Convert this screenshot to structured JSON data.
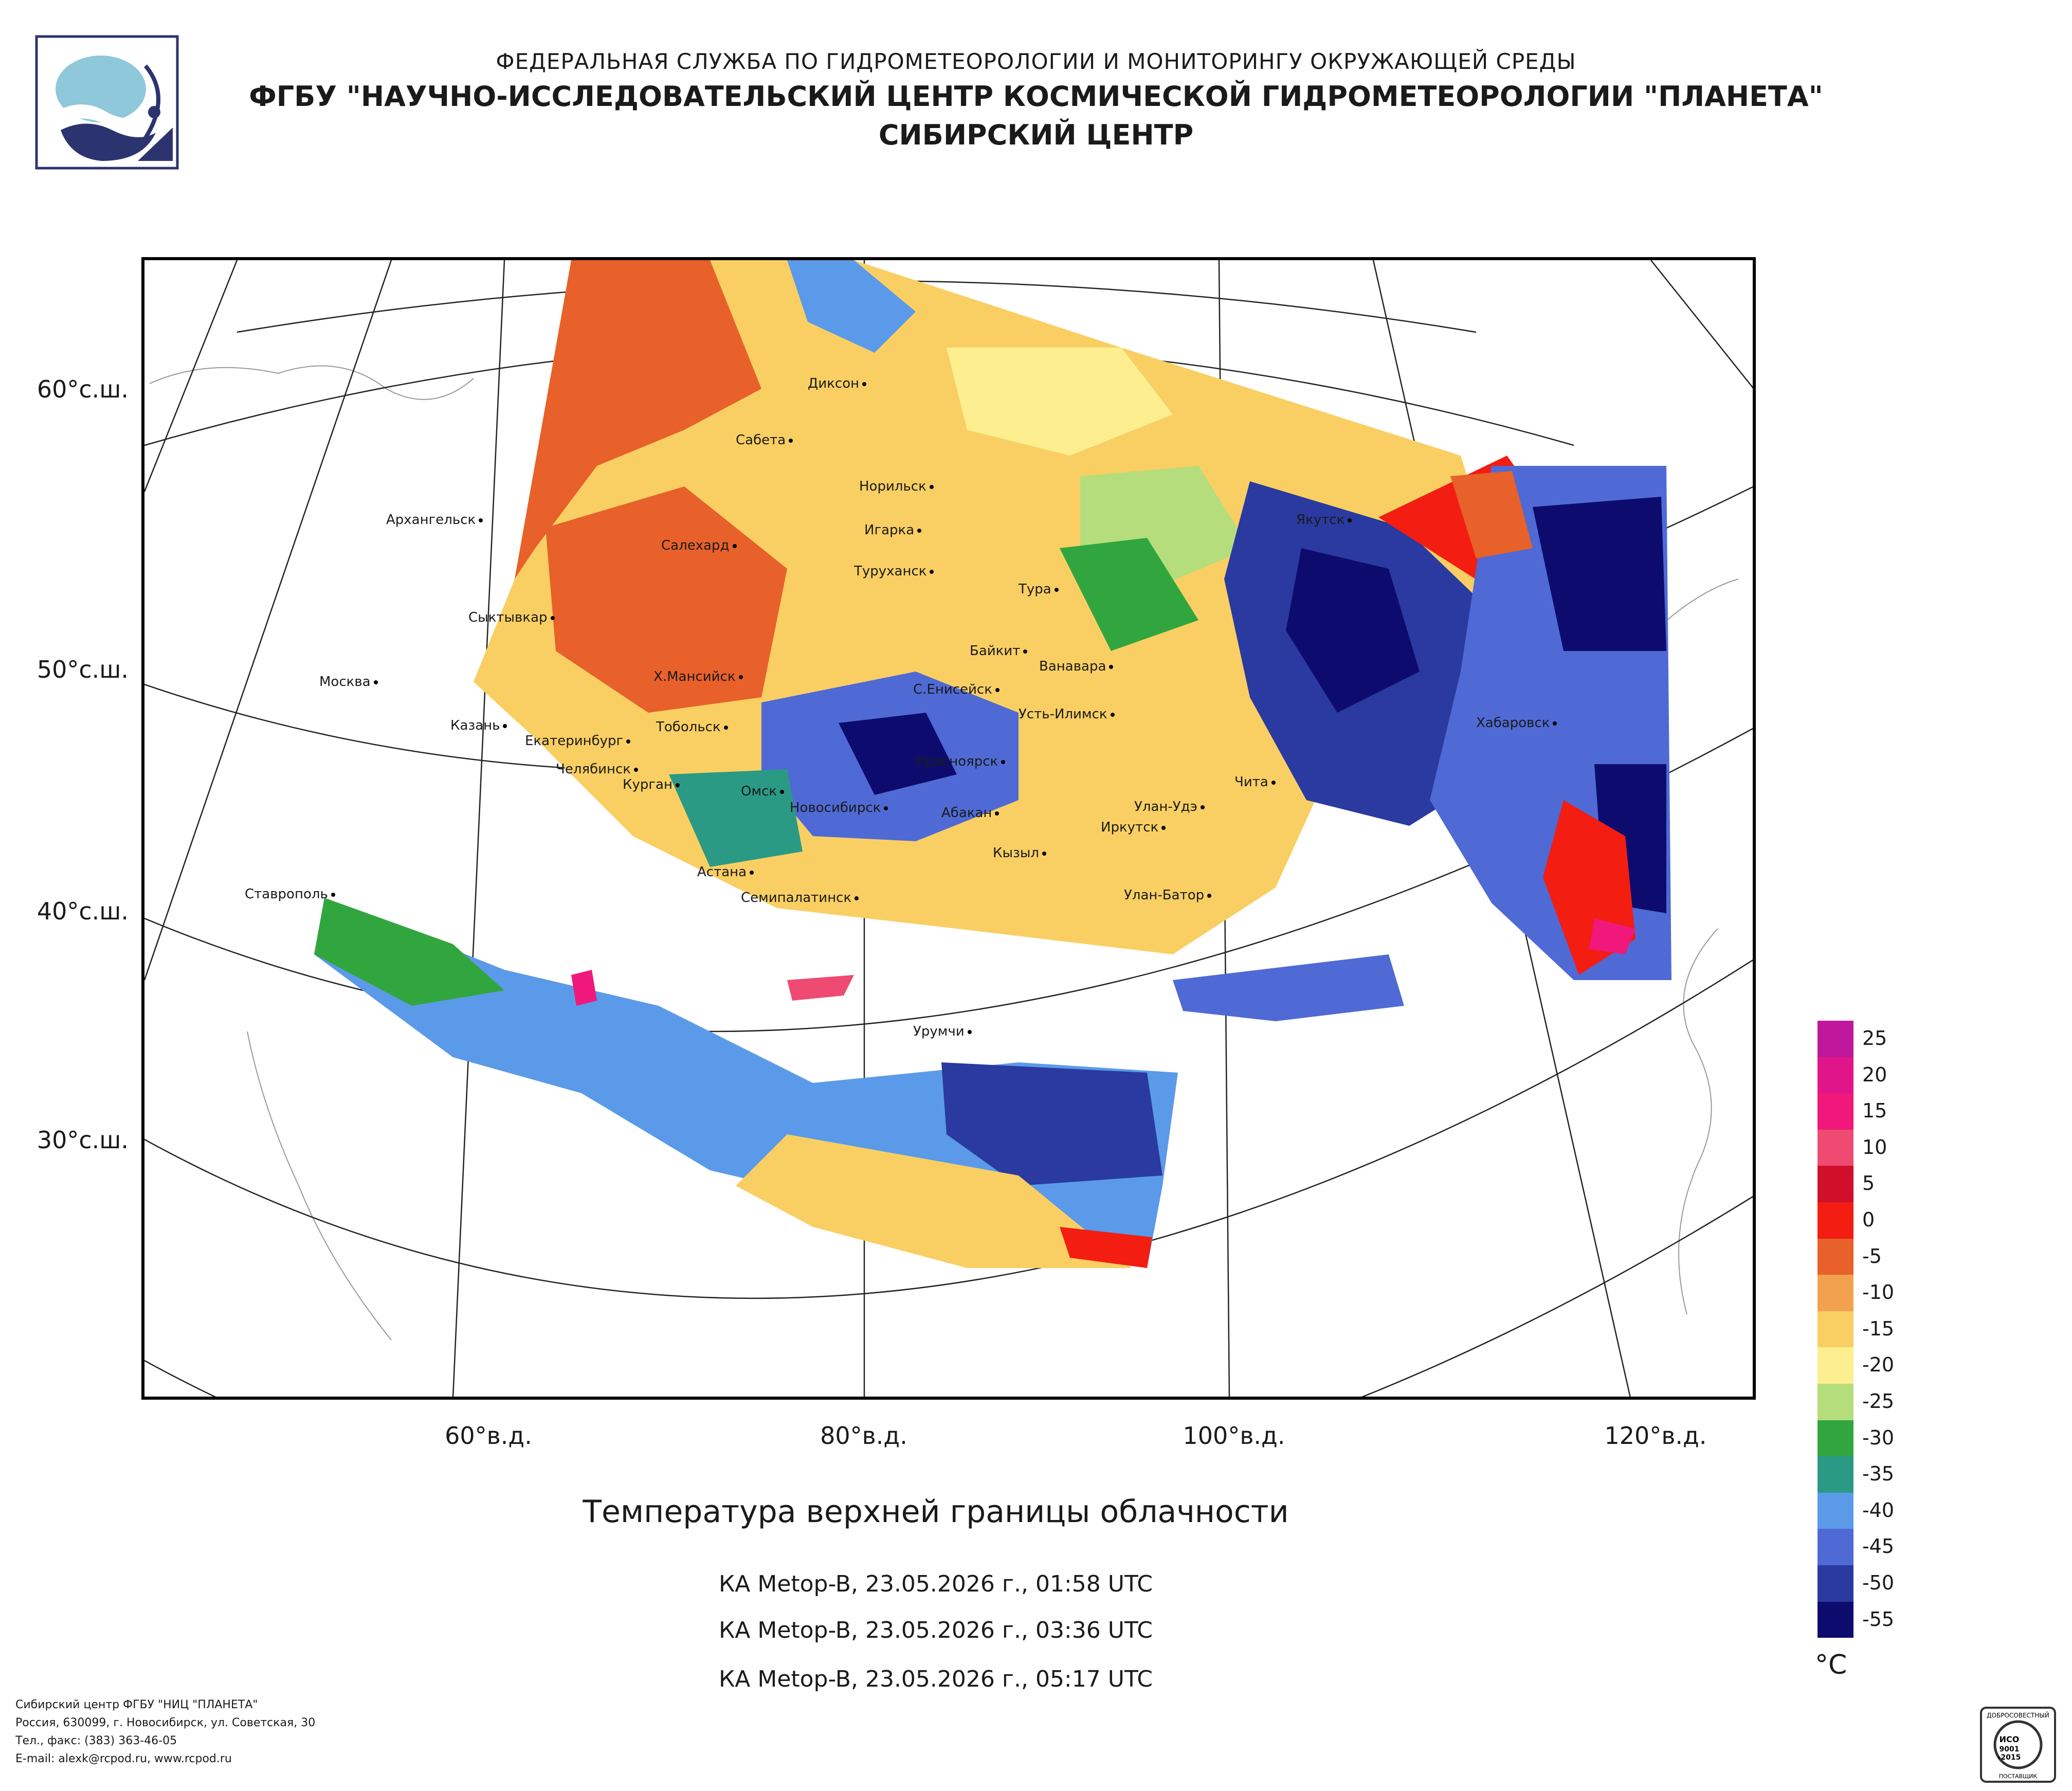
{
  "header": {
    "line1": "ФЕДЕРАЛЬНАЯ СЛУЖБА ПО ГИДРОМЕТЕОРОЛОГИИ И МОНИТОРИНГУ ОКРУЖАЮЩЕЙ СРЕДЫ",
    "line2": "ФГБУ \"НАУЧНО-ИССЛЕДОВАТЕЛЬСКИЙ ЦЕНТР КОСМИЧЕСКОЙ ГИДРОМЕТЕОРОЛОГИИ \"ПЛАНЕТА\"",
    "line3": "СИБИРСКИЙ ЦЕНТР"
  },
  "map": {
    "latitude_labels": [
      "60°с.ш.",
      "50°с.ш.",
      "40°с.ш.",
      "30°с.ш."
    ],
    "longitude_labels": [
      "60°в.д.",
      "80°в.д.",
      "100°в.д.",
      "120°в.д."
    ],
    "cities": [
      "Диксон",
      "Сабета",
      "Норильск",
      "Архангельск",
      "Игарка",
      "Салехард",
      "Якутск",
      "Туруханск",
      "Тура",
      "Сыктывкар",
      "Байкит",
      "Ванавара",
      "Х.Мансийск",
      "С.Енисейск",
      "Москва",
      "Усть-Илимск",
      "Казань",
      "Тобольск",
      "Хабаровск",
      "Екатеринбург",
      "Красноярск",
      "Челябинск",
      "Чита",
      "Курган",
      "Омск",
      "Новосибирск",
      "Абакан",
      "Улан-Удэ",
      "Иркутск",
      "Кызыл",
      "Астана",
      "Семипалатинск",
      "Улан-Батор",
      "Ставрополь",
      "Урумчи"
    ]
  },
  "caption": {
    "title": "Температура верхней границы облачности",
    "passes": [
      "КА Metop-B, 23.05.2026 г., 01:58 UTC",
      "КА Metop-B, 23.05.2026 г., 03:36 UTC",
      "КА Metop-B, 23.05.2026 г., 05:17 UTC"
    ]
  },
  "legend": {
    "unit": "°C",
    "ticks": [
      "25",
      "20",
      "15",
      "10",
      "5",
      "0",
      "-5",
      "-10",
      "-15",
      "-20",
      "-25",
      "-30",
      "-35",
      "-40",
      "-45",
      "-50",
      "-55"
    ],
    "colors": [
      "#c0189c",
      "#e0158a",
      "#f0187a",
      "#ee4a72",
      "#d0102a",
      "#f31d12",
      "#e8602a",
      "#f2a24e",
      "#f9cf63",
      "#fdef8f",
      "#b5dd7c",
      "#31a63e",
      "#2a9a85",
      "#5b9ae8",
      "#4f6ad4",
      "#2a3aa0",
      "#0d0c6e"
    ]
  },
  "footer": {
    "line1": "Сибирский центр ФГБУ \"НИЦ \"ПЛАНЕТА\"",
    "line2": "Россия, 630099, г. Новосибирск, ул. Советская, 30",
    "line3": "Тел., факс: (383) 363-46-05",
    "line4": "E-mail: alexk@rcpod.ru, www.rcpod.ru"
  },
  "certificate": {
    "top_text": "ДОБРОСОВЕСТНЫЙ",
    "middle": "ИСО 9001 -2015",
    "bottom_text": "ПОСТАВЩИК"
  }
}
